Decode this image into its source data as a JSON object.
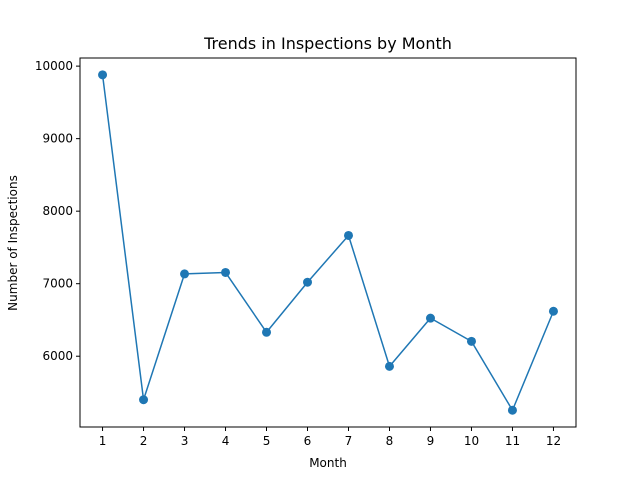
{
  "chart_data": {
    "type": "line",
    "title": "Trends in Inspections by Month",
    "xlabel": "Month",
    "ylabel": "Number of Inspections",
    "x": [
      1,
      2,
      3,
      4,
      5,
      6,
      7,
      8,
      9,
      10,
      11,
      12
    ],
    "series": [
      {
        "values": [
          9880,
          5400,
          7135,
          7155,
          6330,
          7020,
          7665,
          5860,
          6525,
          6205,
          5255,
          6620
        ],
        "color": "#1f77b4",
        "marker": "circle"
      }
    ],
    "xticks": [
      1,
      2,
      3,
      4,
      5,
      6,
      7,
      8,
      9,
      10,
      11,
      12
    ],
    "yticks": [
      6000,
      7000,
      8000,
      9000,
      10000
    ],
    "xlim": [
      0.45,
      12.55
    ],
    "ylim": [
      5024,
      10112
    ],
    "grid": false,
    "legend": "none"
  }
}
